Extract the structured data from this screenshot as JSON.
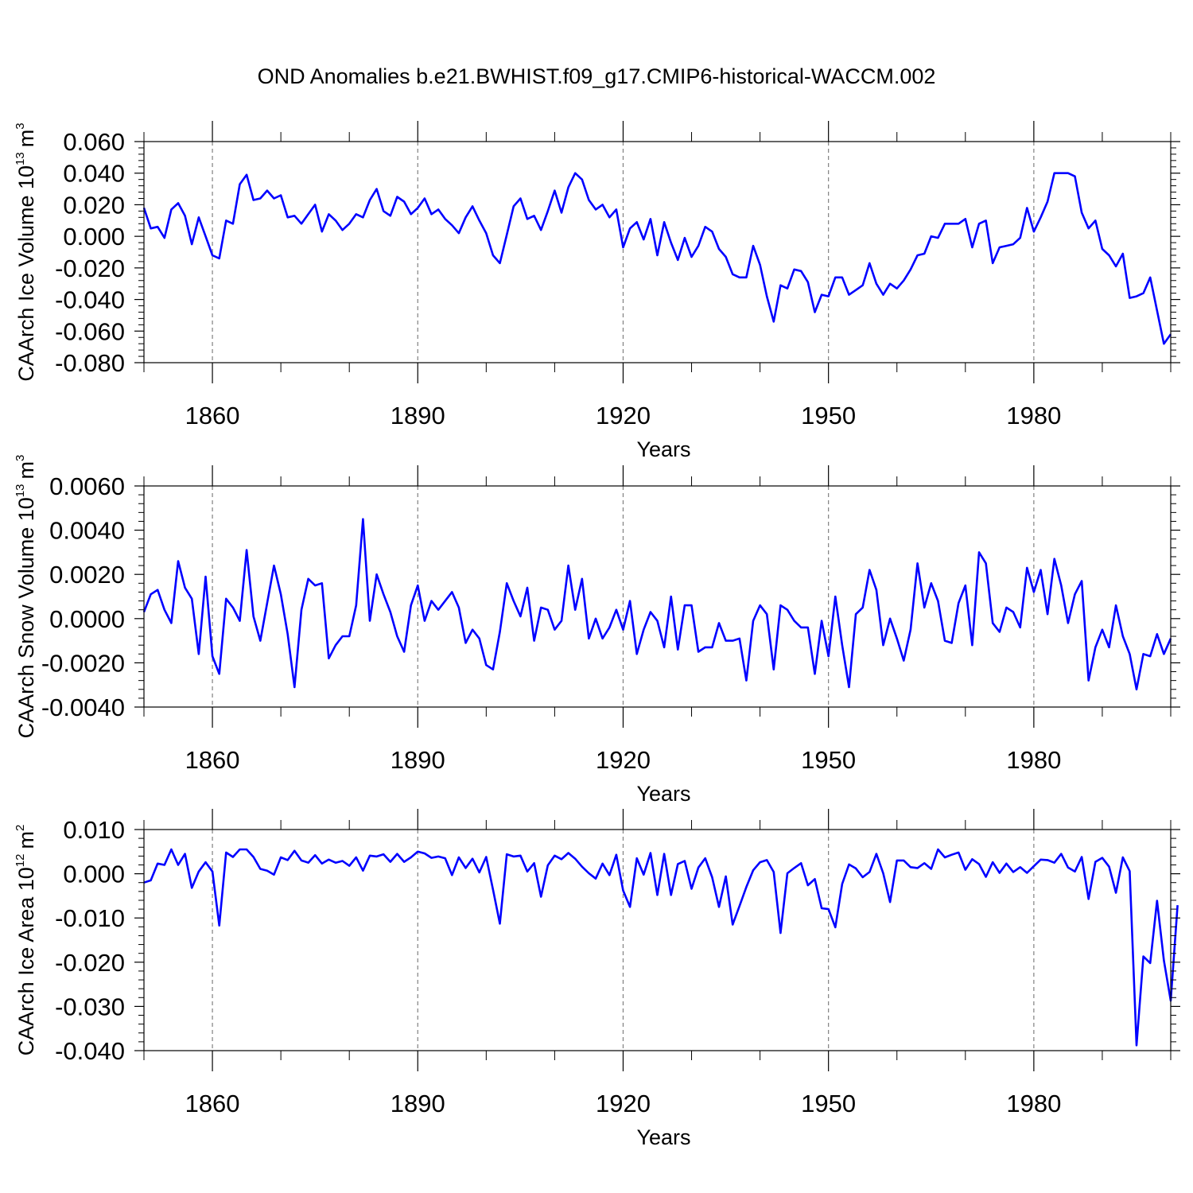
{
  "title": "OND Anomalies b.e21.BWHIST.f09_g17.CMIP6-historical-WACCM.002",
  "colors": {
    "series": "#0000ff",
    "axis": "#000000",
    "grid": "#808080"
  },
  "chart_data": [
    {
      "type": "line",
      "title": "OND Anomalies b.e21.BWHIST.f09_g17.CMIP6-historical-WACCM.002",
      "xlabel": "Years",
      "ylabel_main": "CAArch Ice Volume 10",
      "ylabel_exp": "13",
      "ylabel_unit": "m",
      "ylabel_unit_exp": "3",
      "xlim": [
        1850,
        2000
      ],
      "ylim": [
        -0.08,
        0.06
      ],
      "x_ticks": [
        1860,
        1890,
        1920,
        1950,
        1980
      ],
      "x_tick_labels": [
        "1860",
        "1890",
        "1920",
        "1950",
        "1980"
      ],
      "y_ticks": [
        0.06,
        0.04,
        0.02,
        0.0,
        -0.02,
        -0.04,
        -0.06,
        -0.08
      ],
      "y_tick_labels": [
        "0.060",
        "0.040",
        "0.020",
        "0.000",
        "-0.020",
        "-0.040",
        "-0.060",
        "-0.080"
      ],
      "x_start": 1850,
      "series": [
        {
          "name": "Ice Volume",
          "values": [
            0.018,
            0.005,
            0.006,
            -0.001,
            0.017,
            0.021,
            0.013,
            -0.005,
            0.012,
            0.0,
            -0.012,
            -0.014,
            0.01,
            0.008,
            0.033,
            0.039,
            0.023,
            0.024,
            0.029,
            0.024,
            0.026,
            0.012,
            0.013,
            0.008,
            0.014,
            0.02,
            0.003,
            0.014,
            0.01,
            0.004,
            0.008,
            0.014,
            0.012,
            0.023,
            0.03,
            0.016,
            0.013,
            0.025,
            0.022,
            0.014,
            0.018,
            0.024,
            0.014,
            0.017,
            0.011,
            0.007,
            0.002,
            0.012,
            0.019,
            0.01,
            0.002,
            -0.012,
            -0.017,
            0.001,
            0.019,
            0.024,
            0.011,
            0.013,
            0.004,
            0.016,
            0.029,
            0.015,
            0.031,
            0.04,
            0.036,
            0.023,
            0.017,
            0.02,
            0.012,
            0.017,
            -0.007,
            0.005,
            0.009,
            -0.002,
            0.011,
            -0.012,
            0.009,
            -0.004,
            -0.015,
            -0.001,
            -0.013,
            -0.006,
            0.006,
            0.003,
            -0.008,
            -0.013,
            -0.024,
            -0.026,
            -0.026,
            -0.006,
            -0.018,
            -0.038,
            -0.054,
            -0.031,
            -0.033,
            -0.021,
            -0.022,
            -0.029,
            -0.048,
            -0.037,
            -0.038,
            -0.026,
            -0.026,
            -0.037,
            -0.034,
            -0.031,
            -0.017,
            -0.03,
            -0.037,
            -0.03,
            -0.033,
            -0.028,
            -0.021,
            -0.012,
            -0.011,
            0.0,
            -0.001,
            0.008,
            0.008,
            0.008,
            0.011,
            -0.007,
            0.008,
            0.01,
            -0.017,
            -0.007,
            -0.006,
            -0.005,
            -0.001,
            0.018,
            0.003,
            0.012,
            0.022,
            0.04,
            0.04,
            0.04,
            0.038,
            0.015,
            0.005,
            0.01,
            -0.008,
            -0.012,
            -0.019,
            -0.011,
            -0.039,
            -0.038,
            -0.036,
            -0.026,
            -0.047,
            -0.068,
            -0.062
          ]
        }
      ]
    },
    {
      "type": "line",
      "xlabel": "Years",
      "ylabel_main": "CAArch Snow Volume 10",
      "ylabel_exp": "13",
      "ylabel_unit": "m",
      "ylabel_unit_exp": "3",
      "xlim": [
        1850,
        2000
      ],
      "ylim": [
        -0.004,
        0.006
      ],
      "x_ticks": [
        1860,
        1890,
        1920,
        1950,
        1980
      ],
      "x_tick_labels": [
        "1860",
        "1890",
        "1920",
        "1950",
        "1980"
      ],
      "y_ticks": [
        0.006,
        0.004,
        0.002,
        0.0,
        -0.002,
        -0.004
      ],
      "y_tick_labels": [
        "0.0060",
        "0.0040",
        "0.0020",
        "0.0000",
        "-0.0020",
        "-0.0040"
      ],
      "x_start": 1850,
      "series": [
        {
          "name": "Snow Volume",
          "values": [
            0.0003,
            0.0011,
            0.0013,
            0.0004,
            -0.0002,
            0.0026,
            0.0014,
            0.0009,
            -0.0016,
            0.0019,
            -0.0017,
            -0.0025,
            0.0009,
            0.0005,
            -0.0001,
            0.0031,
            0.0001,
            -0.001,
            0.0007,
            0.0024,
            0.0011,
            -0.0007,
            -0.0031,
            0.0004,
            0.0018,
            0.0015,
            0.0016,
            -0.0018,
            -0.0012,
            -0.0008,
            -0.0008,
            0.0006,
            0.0045,
            -0.0001,
            0.002,
            0.0011,
            0.0003,
            -0.0008,
            -0.0015,
            0.0006,
            0.0015,
            -0.0001,
            0.0008,
            0.0004,
            0.0008,
            0.0012,
            0.0005,
            -0.0011,
            -0.0005,
            -0.0009,
            -0.0021,
            -0.0023,
            -0.0006,
            0.0016,
            0.0008,
            0.0001,
            0.0014,
            -0.001,
            0.0005,
            0.0004,
            -0.0005,
            -0.0001,
            0.0024,
            0.0004,
            0.0018,
            -0.0009,
            0.0,
            -0.0009,
            -0.0004,
            0.0004,
            -0.0005,
            0.0008,
            -0.0016,
            -0.0005,
            0.0003,
            -0.0001,
            -0.0013,
            0.001,
            -0.0014,
            0.0006,
            0.0006,
            -0.0015,
            -0.0013,
            -0.0013,
            -0.0002,
            -0.001,
            -0.001,
            -0.0009,
            -0.0028,
            -0.0001,
            0.0006,
            0.0002,
            -0.0023,
            0.0006,
            0.0004,
            -0.0001,
            -0.0004,
            -0.0004,
            -0.0025,
            -0.0001,
            -0.0017,
            0.001,
            -0.0012,
            -0.0031,
            0.0002,
            0.0005,
            0.0022,
            0.0013,
            -0.0012,
            0.0,
            -0.0009,
            -0.0019,
            -0.0005,
            0.0025,
            0.0005,
            0.0016,
            0.0008,
            -0.001,
            -0.0011,
            0.0007,
            0.0015,
            -0.0012,
            0.003,
            0.0025,
            -0.0002,
            -0.0006,
            0.0005,
            0.0003,
            -0.0004,
            0.0023,
            0.0012,
            0.0022,
            0.0002,
            0.0027,
            0.0015,
            -0.0002,
            0.0011,
            0.0017,
            -0.0028,
            -0.0013,
            -0.0005,
            -0.0013,
            0.0006,
            -0.0008,
            -0.0016,
            -0.0032,
            -0.0016,
            -0.0017,
            -0.0007,
            -0.0016,
            -0.0009
          ]
        }
      ]
    },
    {
      "type": "line",
      "xlabel": "Years",
      "ylabel_main": "CAArch Ice Area 10",
      "ylabel_exp": "12",
      "ylabel_unit": "m",
      "ylabel_unit_exp": "2",
      "xlim": [
        1850,
        2000
      ],
      "ylim": [
        -0.04,
        0.01
      ],
      "x_ticks": [
        1860,
        1890,
        1920,
        1950,
        1980
      ],
      "x_tick_labels": [
        "1860",
        "1890",
        "1920",
        "1950",
        "1980"
      ],
      "y_ticks": [
        0.01,
        0.0,
        -0.01,
        -0.02,
        -0.03,
        -0.04
      ],
      "y_tick_labels": [
        "0.010",
        "0.000",
        "-0.010",
        "-0.020",
        "-0.030",
        "-0.040"
      ],
      "x_start": 1850,
      "series": [
        {
          "name": "Ice Area",
          "values": [
            -0.002,
            -0.0015,
            0.0023,
            0.002,
            0.0055,
            0.002,
            0.0045,
            -0.0032,
            0.0005,
            0.0026,
            0.0005,
            -0.0117,
            0.0048,
            0.0038,
            0.0055,
            0.0055,
            0.0038,
            0.0011,
            0.0007,
            -0.0002,
            0.0037,
            0.0031,
            0.0052,
            0.003,
            0.0025,
            0.0042,
            0.0023,
            0.0032,
            0.0025,
            0.0029,
            0.0018,
            0.0037,
            0.0007,
            0.0041,
            0.0039,
            0.0044,
            0.0027,
            0.0045,
            0.0027,
            0.0037,
            0.005,
            0.0046,
            0.0036,
            0.0039,
            0.0035,
            -0.0003,
            0.0037,
            0.0013,
            0.0034,
            0.0003,
            0.0038,
            -0.0036,
            -0.0113,
            0.0044,
            0.0039,
            0.0041,
            0.0005,
            0.0024,
            -0.0052,
            0.0019,
            0.0041,
            0.0033,
            0.0047,
            0.0034,
            0.0016,
            0.0001,
            -0.0011,
            0.0023,
            -0.0003,
            0.0043,
            -0.0038,
            -0.0075,
            0.0035,
            -0.0002,
            0.0047,
            -0.0048,
            0.0045,
            -0.0048,
            0.0022,
            0.0029,
            -0.0034,
            0.0014,
            0.0035,
            -0.0008,
            -0.0075,
            -0.0006,
            -0.0115,
            -0.0073,
            -0.003,
            0.0008,
            0.0026,
            0.0031,
            0.0004,
            -0.0134,
            0.0001,
            0.0013,
            0.0024,
            -0.0026,
            -0.0012,
            -0.0078,
            -0.008,
            -0.0121,
            -0.0023,
            0.0021,
            0.0012,
            -0.0008,
            0.0004,
            0.0045,
            0.0001,
            -0.0064,
            0.003,
            0.003,
            0.0015,
            0.0013,
            0.0024,
            0.0011,
            0.0055,
            0.0037,
            0.0043,
            0.0048,
            0.0009,
            0.0033,
            0.0022,
            -0.0007,
            0.0026,
            0.0002,
            0.0023,
            0.0004,
            0.0015,
            0.0002,
            0.0017,
            0.0032,
            0.0031,
            0.0025,
            0.0045,
            0.0014,
            0.0005,
            0.0038,
            -0.0057,
            0.0027,
            0.0036,
            0.0016,
            -0.0043,
            0.0037,
            0.0006,
            -0.0388,
            -0.0187,
            -0.0202,
            -0.0061,
            -0.0196,
            -0.0287,
            -0.0071
          ]
        }
      ]
    }
  ]
}
